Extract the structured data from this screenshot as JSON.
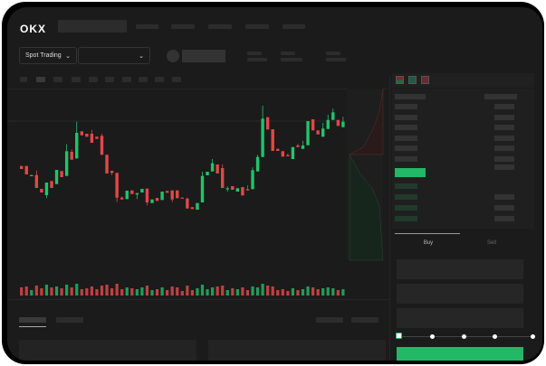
{
  "header": {
    "logo": "OKX"
  },
  "toolbar": {
    "market_select": "Spot Trading",
    "pair_select": ""
  },
  "trade": {
    "buy_tab": "Buy",
    "sell_tab": "Sell"
  },
  "colors": {
    "up": "#22c36b",
    "down": "#e04848",
    "bg": "#1b1b1b",
    "accent": "#22b866"
  },
  "slider": {
    "value_percent": 0,
    "stops": 5
  },
  "chart_data": {
    "type": "candlestick",
    "candles": [
      [
        118.3,
        118.3,
        115,
        115
      ],
      [
        118.3,
        118.3,
        109,
        109
      ],
      [
        107,
        108.3,
        107,
        108.3
      ],
      [
        108.3,
        113.3,
        94,
        94
      ],
      [
        93,
        93,
        89,
        89
      ],
      [
        86,
        100,
        82.7,
        100
      ],
      [
        101.7,
        101.7,
        94,
        94
      ],
      [
        98.3,
        114,
        98.3,
        114
      ],
      [
        112.7,
        112.7,
        106,
        106
      ],
      [
        107.3,
        142.7,
        107.3,
        134.7
      ],
      [
        134,
        136.7,
        125.3,
        125.3
      ],
      [
        126.7,
        167.3,
        126.7,
        155
      ],
      [
        156.7,
        156.7,
        152.3,
        152.3
      ],
      [
        154,
        154,
        150.7,
        150.7
      ],
      [
        154,
        158.3,
        144,
        144
      ],
      [
        150.7,
        150.7,
        148.3,
        148.3
      ],
      [
        151.7,
        154,
        130.7,
        130.7
      ],
      [
        130.7,
        130.7,
        110,
        110
      ],
      [
        113,
        113,
        108.3,
        110.7
      ],
      [
        110.7,
        110.7,
        78.3,
        83.3
      ],
      [
        83.3,
        84.7,
        81.3,
        81.3
      ],
      [
        81.7,
        91,
        81.7,
        91
      ],
      [
        91.3,
        91.3,
        87.3,
        87.3
      ],
      [
        86.7,
        88.3,
        81.7,
        88.3
      ],
      [
        89,
        93,
        89,
        93
      ],
      [
        93.3,
        93.3,
        74.7,
        78
      ],
      [
        77.3,
        81.3,
        77.3,
        81.3
      ],
      [
        83,
        83,
        79.7,
        79.7
      ],
      [
        80.7,
        90,
        80.7,
        90
      ],
      [
        90.7,
        90.7,
        88.7,
        88.7
      ],
      [
        91.3,
        91.3,
        78.3,
        81.3
      ],
      [
        91.3,
        91.3,
        82.7,
        82.7
      ],
      [
        83.3,
        83.3,
        82.3,
        82.3
      ],
      [
        82.3,
        83.3,
        71.3,
        71.3
      ],
      [
        72.7,
        72.7,
        70.7,
        70.7
      ],
      [
        70,
        77.3,
        70,
        77.3
      ],
      [
        78,
        112,
        78,
        107.3
      ],
      [
        108,
        112,
        108,
        112
      ],
      [
        112.3,
        126,
        112.3,
        121.3
      ],
      [
        120,
        120,
        110,
        110
      ],
      [
        116,
        120.3,
        94,
        94
      ],
      [
        92.7,
        95.7,
        90,
        93.7
      ],
      [
        96,
        96,
        92,
        92
      ],
      [
        90,
        93.7,
        90,
        93.7
      ],
      [
        95,
        95,
        85.7,
        85.7
      ],
      [
        92.7,
        97,
        91.3,
        91.3
      ],
      [
        92.7,
        116.7,
        92.7,
        113.7
      ],
      [
        112.3,
        130.7,
        112.3,
        128.3
      ],
      [
        128.3,
        185,
        128.3,
        170.7
      ],
      [
        172.3,
        172.3,
        158.7,
        158.7
      ],
      [
        159,
        159,
        135,
        135
      ],
      [
        137.3,
        137.3,
        135,
        135
      ],
      [
        134.7,
        134.7,
        128.7,
        128.7
      ],
      [
        130.3,
        132,
        129,
        129
      ],
      [
        126,
        139.3,
        126,
        139.3
      ],
      [
        141,
        143,
        139.3,
        139.3
      ],
      [
        137.3,
        146.3,
        137.3,
        141
      ],
      [
        141.3,
        168,
        141.3,
        168
      ],
      [
        170,
        170,
        157.7,
        157.7
      ],
      [
        157.7,
        157.7,
        153.3,
        153.3
      ],
      [
        150.7,
        166,
        150.7,
        159.7
      ],
      [
        159.3,
        175,
        159.3,
        169.3
      ],
      [
        169.3,
        181.7,
        169.3,
        177.7
      ],
      [
        169.3,
        169.3,
        162.7,
        162.7
      ],
      [
        161.3,
        172.7,
        161.3,
        167.3
      ]
    ],
    "candle_format": [
      "open",
      "high",
      "low",
      "close"
    ],
    "volumes": [
      9,
      10,
      6,
      11,
      8,
      12,
      9,
      10,
      8,
      12,
      9,
      13,
      7,
      8,
      10,
      7,
      11,
      12,
      8,
      13,
      7,
      9,
      8,
      7,
      9,
      11,
      6,
      7,
      9,
      6,
      10,
      9,
      5,
      11,
      6,
      8,
      12,
      7,
      9,
      10,
      11,
      6,
      8,
      7,
      9,
      6,
      10,
      9,
      13,
      11,
      10,
      6,
      7,
      5,
      8,
      6,
      7,
      10,
      9,
      7,
      8,
      9,
      8,
      6,
      7
    ]
  }
}
